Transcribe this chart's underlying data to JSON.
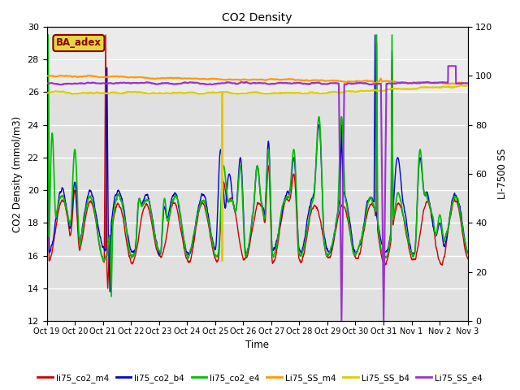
{
  "title": "CO2 Density",
  "xlabel": "Time",
  "ylabel_left": "CO2 Density (mmol/m3)",
  "ylabel_right": "LI-7500 SS",
  "ylim_left": [
    12,
    30
  ],
  "ylim_right": [
    0,
    120
  ],
  "background_color": "#ffffff",
  "plot_bg_color": "#e0e0e0",
  "annotation_text": "BA_adex",
  "annotation_color": "#8B0000",
  "annotation_bg": "#e8d840",
  "xtick_labels": [
    "Oct 19",
    "Oct 20",
    "Oct 21",
    "Oct 22",
    "Oct 23",
    "Oct 24",
    "Oct 25",
    "Oct 26",
    "Oct 27",
    "Oct 28",
    "Oct 29",
    "Oct 30",
    "Oct 31",
    "Nov 1",
    "Nov 2",
    "Nov 3"
  ],
  "series": {
    "li75_co2_m4": {
      "color": "#cc0000",
      "lw": 1.0
    },
    "li75_co2_b4": {
      "color": "#0000cc",
      "lw": 1.0
    },
    "li75_co2_e4": {
      "color": "#00bb00",
      "lw": 1.2
    },
    "Li75_SS_m4": {
      "color": "#ff9900",
      "lw": 1.5
    },
    "Li75_SS_b4": {
      "color": "#ddcc00",
      "lw": 1.5
    },
    "Li75_SS_e4": {
      "color": "#9933cc",
      "lw": 1.5
    }
  },
  "legend_entries": [
    {
      "label": "li75_co2_m4",
      "color": "#cc0000"
    },
    {
      "label": "li75_co2_b4",
      "color": "#0000cc"
    },
    {
      "label": "li75_co2_e4",
      "color": "#00bb00"
    },
    {
      "label": "Li75_SS_m4",
      "color": "#ff9900"
    },
    {
      "label": "Li75_SS_b4",
      "color": "#ddcc00"
    },
    {
      "label": "Li75_SS_e4",
      "color": "#9933cc"
    }
  ],
  "ss_m4_base": 100,
  "ss_b4_base": 93,
  "ss_e4_base": 97,
  "co2_base": 17.5,
  "co2_amplitude": 2.5
}
